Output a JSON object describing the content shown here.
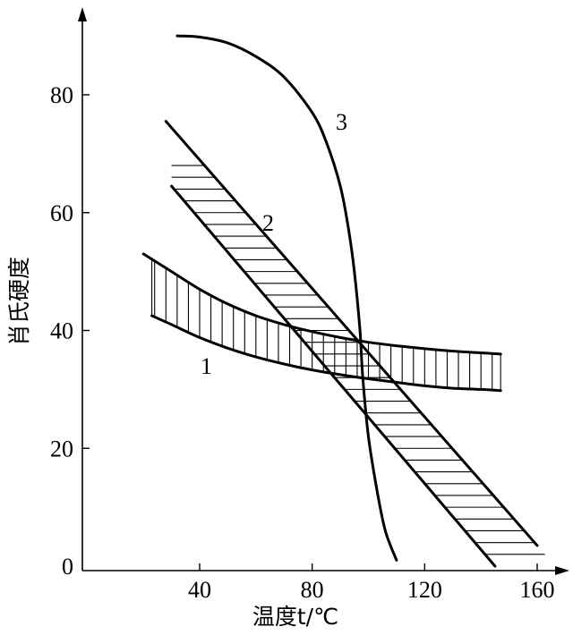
{
  "chart_data": {
    "type": "line",
    "title": "",
    "xlabel": "温度t/℃",
    "ylabel": "肖氏硬度",
    "xlim": [
      15,
      165
    ],
    "ylim": [
      0,
      95
    ],
    "xticks": [
      40,
      80,
      120,
      160
    ],
    "yticks": [
      0,
      20,
      40,
      60,
      80
    ],
    "grid": false,
    "series": [
      {
        "name": "1",
        "kind": "band",
        "upper": {
          "x": [
            20,
            30,
            40,
            50,
            60,
            70,
            80,
            90,
            100,
            110,
            120,
            130,
            140,
            147
          ],
          "y": [
            53,
            50,
            47,
            44.5,
            42.5,
            41,
            39.8,
            38.8,
            38,
            37.4,
            36.9,
            36.5,
            36.2,
            36
          ]
        },
        "lower": {
          "x": [
            23,
            30,
            40,
            50,
            60,
            70,
            80,
            90,
            100,
            110,
            120,
            130,
            140,
            147
          ],
          "y": [
            42.5,
            41,
            38.8,
            37,
            35.5,
            34.3,
            33.3,
            32.5,
            31.8,
            31.2,
            30.6,
            30.2,
            30,
            29.8
          ]
        }
      },
      {
        "name": "2",
        "kind": "band",
        "upper": {
          "x": [
            28,
            160
          ],
          "y": [
            75.5,
            3.5
          ]
        },
        "lower": {
          "x": [
            30,
            145
          ],
          "y": [
            64.5,
            0
          ]
        }
      },
      {
        "name": "3",
        "kind": "line",
        "x": [
          32,
          40,
          50,
          60,
          70,
          80,
          85,
          90,
          93,
          95,
          97,
          98,
          100,
          103,
          106,
          110
        ],
        "y": [
          90,
          89.8,
          88.8,
          86.5,
          83,
          77,
          72,
          64.5,
          57,
          50,
          40,
          32,
          22,
          13,
          6,
          1
        ]
      }
    ]
  }
}
